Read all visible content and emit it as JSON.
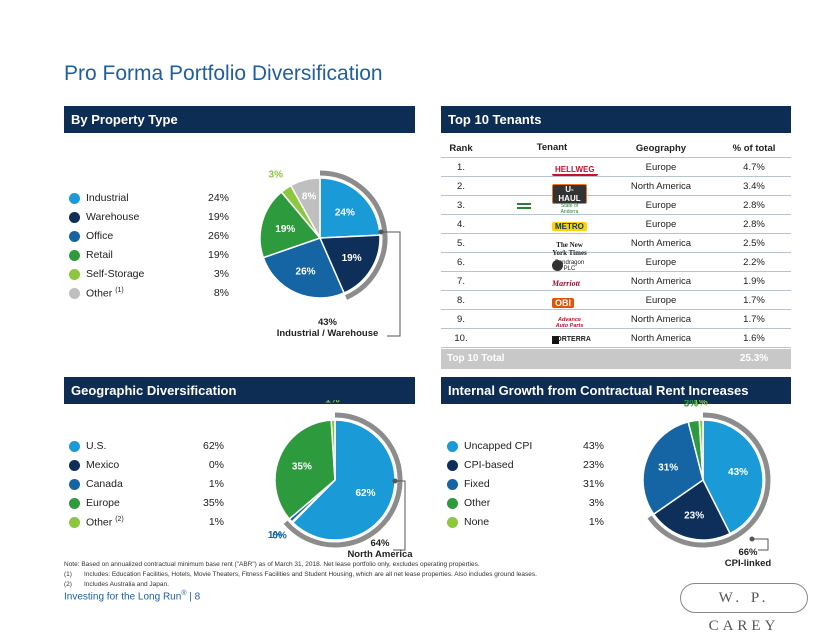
{
  "title": "Pro Forma Portfolio Diversification",
  "property": {
    "header": "By Property Type",
    "legend": [
      {
        "label": "Industrial",
        "value": "24%",
        "color": "#1a9bd7"
      },
      {
        "label": "Warehouse",
        "value": "19%",
        "color": "#0e2f5a"
      },
      {
        "label": "Office",
        "value": "26%",
        "color": "#1565a4"
      },
      {
        "label": "Retail",
        "value": "19%",
        "color": "#2e9a3e"
      },
      {
        "label": "Self-Storage",
        "value": "3%",
        "color": "#8dc63f"
      },
      {
        "label": "Other",
        "value": "8%",
        "color": "#bfbfbf"
      }
    ],
    "other_sup": "(1)",
    "callout_value": "43%",
    "callout_label": "Industrial / Warehouse"
  },
  "tenants": {
    "header": "Top 10 Tenants",
    "columns": [
      "Rank",
      "Tenant",
      "Geography",
      "% of total"
    ],
    "rows": [
      {
        "rank": "1.",
        "tenant": "HELLWEG",
        "geo": "Europe",
        "pct": "4.7%"
      },
      {
        "rank": "2.",
        "tenant": "U-HAUL",
        "geo": "North America",
        "pct": "3.4%"
      },
      {
        "rank": "3.",
        "tenant": "State of Andorra",
        "geo": "Europe",
        "pct": "2.8%"
      },
      {
        "rank": "4.",
        "tenant": "METRO",
        "geo": "Europe",
        "pct": "2.8%"
      },
      {
        "rank": "5.",
        "tenant": "The New York Times",
        "geo": "North America",
        "pct": "2.5%"
      },
      {
        "rank": "6.",
        "tenant": "Pendragon PLC",
        "geo": "Europe",
        "pct": "2.2%"
      },
      {
        "rank": "7.",
        "tenant": "Marriott",
        "geo": "North America",
        "pct": "1.9%"
      },
      {
        "rank": "8.",
        "tenant": "OBI",
        "geo": "Europe",
        "pct": "1.7%"
      },
      {
        "rank": "9.",
        "tenant": "Advance Auto Parts",
        "geo": "North America",
        "pct": "1.7%"
      },
      {
        "rank": "10.",
        "tenant": "FORTERRA",
        "geo": "North America",
        "pct": "1.6%"
      }
    ],
    "total_label": "Top 10 Total",
    "total_value": "25.3%"
  },
  "geo": {
    "header": "Geographic Diversification",
    "legend": [
      {
        "label": "U.S.",
        "value": "62%",
        "color": "#1a9bd7"
      },
      {
        "label": "Mexico",
        "value": "0%",
        "color": "#0e2f5a"
      },
      {
        "label": "Canada",
        "value": "1%",
        "color": "#1565a4"
      },
      {
        "label": "Europe",
        "value": "35%",
        "color": "#2e9a3e"
      },
      {
        "label": "Other",
        "value": "1%",
        "color": "#8dc63f"
      }
    ],
    "other_sup": "(2)",
    "callout_value": "64%",
    "callout_label": "North America"
  },
  "growth": {
    "header": "Internal Growth from Contractual Rent Increases",
    "legend": [
      {
        "label": "Uncapped CPI",
        "value": "43%",
        "color": "#1a9bd7"
      },
      {
        "label": "CPI-based",
        "value": "23%",
        "color": "#0e2f5a"
      },
      {
        "label": "Fixed",
        "value": "31%",
        "color": "#1565a4"
      },
      {
        "label": "Other",
        "value": "3%",
        "color": "#2e9a3e"
      },
      {
        "label": "None",
        "value": "1%",
        "color": "#8dc63f"
      }
    ],
    "callout_value": "66%",
    "callout_label": "CPI-linked"
  },
  "chart_data": [
    {
      "type": "pie",
      "title": "By Property Type",
      "categories": [
        "Industrial",
        "Warehouse",
        "Office",
        "Retail",
        "Self-Storage",
        "Other"
      ],
      "values": [
        24,
        19,
        26,
        19,
        3,
        8
      ],
      "labels": [
        "24%",
        "19%",
        "26%",
        "19%",
        "3%",
        "8%"
      ]
    },
    {
      "type": "pie",
      "title": "Geographic Diversification",
      "categories": [
        "U.S.",
        "Mexico",
        "Canada",
        "Europe",
        "Other"
      ],
      "values": [
        62,
        0.3,
        1,
        35,
        1
      ],
      "labels": [
        "62%",
        "0%",
        "1%",
        "35%",
        "1%"
      ]
    },
    {
      "type": "pie",
      "title": "Internal Growth from Contractual Rent Increases",
      "categories": [
        "Uncapped CPI",
        "CPI-based",
        "Fixed",
        "Other",
        "None"
      ],
      "values": [
        43,
        23,
        31,
        3,
        1
      ],
      "labels": [
        "43%",
        "23%",
        "31%",
        "3%",
        "1%"
      ]
    }
  ],
  "notes": {
    "note": "Note: Based on annualized contractual minimum base rent (\"ABR\") as of March 31, 2018. Net lease portfolio only, excludes operating properties.",
    "n1_num": "(1)",
    "n1": "Includes: Education Facilities, Hotels, Movie Theaters, Fitness Facilities and Student Housing, which are all net lease properties. Also includes ground leases.",
    "n2_num": "(2)",
    "n2": "Includes Australia and Japan."
  },
  "footer": {
    "tagline": "Investing for the Long Run",
    "reg": "®",
    "page": "| 8",
    "brand": "W. P. CAREY"
  }
}
